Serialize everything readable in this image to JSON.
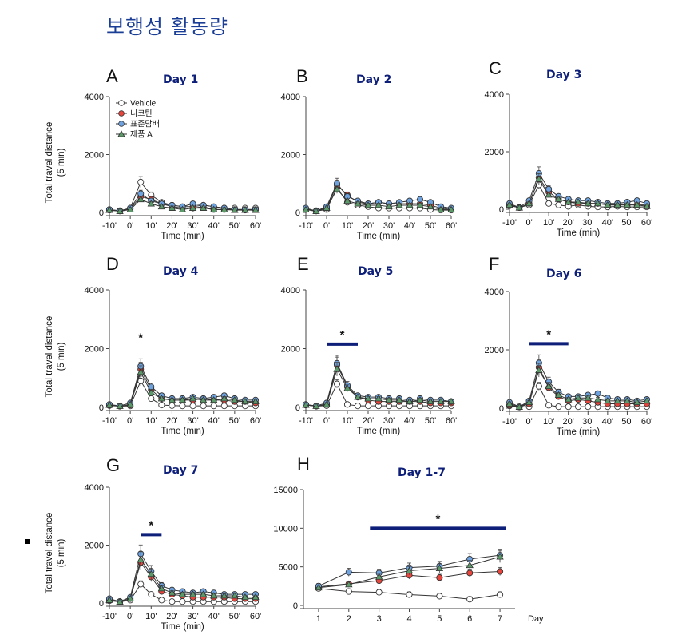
{
  "page": {
    "title": "보행성 활동량"
  },
  "colors": {
    "vehicle": "#ffffff",
    "nicotine": "#e8463c",
    "standard": "#6ea3e0",
    "productA": "#5c9a6a",
    "sigbar": "#0e1f7a"
  },
  "chart_data": [
    {
      "type": "line",
      "panel": "A",
      "title": "Day 1",
      "xlabel": "Time (min)",
      "ylabel": "Total travel distance (5 min)",
      "x": [
        -10,
        -5,
        0,
        5,
        10,
        15,
        20,
        25,
        30,
        35,
        40,
        45,
        50,
        55,
        60
      ],
      "xticks": [
        -10,
        0,
        10,
        20,
        30,
        40,
        50,
        60
      ],
      "xtick_labels": [
        "-10'",
        "0'",
        "10'",
        "20'",
        "30'",
        "40'",
        "50'",
        "60'"
      ],
      "xlim": [
        -10,
        60
      ],
      "ylim": [
        0,
        4000
      ],
      "yticks": [
        0,
        2000,
        4000
      ],
      "yticks_labels": [
        "0",
        "2000",
        "4000"
      ],
      "legend": [
        "Vehicle",
        "니코틴",
        "표준담배",
        "제품 A"
      ],
      "series": [
        {
          "name": "Vehicle",
          "values": [
            100,
            60,
            150,
            1050,
            600,
            350,
            250,
            200,
            200,
            250,
            200,
            150,
            150,
            150,
            150
          ]
        },
        {
          "name": "니코틴",
          "values": [
            80,
            50,
            120,
            550,
            450,
            300,
            200,
            150,
            150,
            200,
            100,
            100,
            100,
            80,
            100
          ]
        },
        {
          "name": "표준담배",
          "values": [
            100,
            50,
            150,
            650,
            400,
            300,
            250,
            200,
            300,
            250,
            200,
            150,
            100,
            100,
            100
          ]
        },
        {
          "name": "제품 A",
          "values": [
            80,
            40,
            100,
            450,
            300,
            200,
            150,
            100,
            150,
            150,
            100,
            100,
            80,
            80,
            80
          ]
        }
      ],
      "significance": []
    },
    {
      "type": "line",
      "panel": "B",
      "title": "Day 2",
      "xlabel": "Time (min)",
      "ylabel": "",
      "x": [
        -10,
        -5,
        0,
        5,
        10,
        15,
        20,
        25,
        30,
        35,
        40,
        45,
        50,
        55,
        60
      ],
      "xticks": [
        -10,
        0,
        10,
        20,
        30,
        40,
        50,
        60
      ],
      "xtick_labels": [
        "-10'",
        "0'",
        "10'",
        "20'",
        "30'",
        "40'",
        "50'",
        "60'"
      ],
      "xlim": [
        -10,
        60
      ],
      "ylim": [
        0,
        4000
      ],
      "yticks": [
        0,
        2000,
        4000
      ],
      "yticks_labels": [
        "0",
        "2000",
        "4000"
      ],
      "series": [
        {
          "name": "Vehicle",
          "values": [
            120,
            50,
            100,
            850,
            350,
            250,
            200,
            150,
            150,
            150,
            150,
            150,
            100,
            80,
            80
          ]
        },
        {
          "name": "니코틴",
          "values": [
            100,
            60,
            150,
            950,
            600,
            350,
            300,
            350,
            300,
            300,
            300,
            300,
            250,
            150,
            100
          ]
        },
        {
          "name": "표준담배",
          "values": [
            150,
            50,
            200,
            1000,
            550,
            400,
            300,
            350,
            300,
            350,
            400,
            450,
            350,
            200,
            150
          ]
        },
        {
          "name": "제품 A",
          "values": [
            100,
            40,
            150,
            800,
            400,
            300,
            250,
            250,
            200,
            250,
            250,
            250,
            200,
            100,
            100
          ]
        }
      ],
      "significance": []
    },
    {
      "type": "line",
      "panel": "C",
      "title": "Day 3",
      "xlabel": "Time (min)",
      "ylabel": "",
      "x": [
        -10,
        -5,
        0,
        5,
        10,
        15,
        20,
        25,
        30,
        35,
        40,
        45,
        50,
        55,
        60
      ],
      "xticks": [
        -10,
        0,
        10,
        20,
        30,
        40,
        50,
        60
      ],
      "xtick_labels": [
        "-10'",
        "0'",
        "10'",
        "20'",
        "30'",
        "40'",
        "50'",
        "60'"
      ],
      "xlim": [
        -10,
        60
      ],
      "ylim": [
        0,
        4000
      ],
      "yticks": [
        0,
        2000,
        4000
      ],
      "yticks_labels": [
        "0",
        "2000",
        "4000"
      ],
      "series": [
        {
          "name": "Vehicle",
          "values": [
            150,
            60,
            150,
            850,
            200,
            150,
            100,
            150,
            100,
            80,
            80,
            100,
            80,
            80,
            80
          ]
        },
        {
          "name": "니코틴",
          "values": [
            120,
            60,
            200,
            1100,
            600,
            350,
            250,
            200,
            200,
            200,
            150,
            150,
            150,
            150,
            150
          ]
        },
        {
          "name": "표준담배",
          "values": [
            200,
            60,
            300,
            1250,
            700,
            450,
            350,
            300,
            300,
            250,
            200,
            200,
            250,
            300,
            200
          ]
        },
        {
          "name": "제품 A",
          "values": [
            150,
            50,
            200,
            1050,
            500,
            350,
            250,
            250,
            200,
            200,
            150,
            150,
            150,
            150,
            100
          ]
        }
      ],
      "significance": []
    },
    {
      "type": "line",
      "panel": "D",
      "title": "Day 4",
      "xlabel": "Time (min)",
      "ylabel": "Total travel distance (5 min)",
      "x": [
        -10,
        -5,
        0,
        5,
        10,
        15,
        20,
        25,
        30,
        35,
        40,
        45,
        50,
        55,
        60
      ],
      "xticks": [
        -10,
        0,
        10,
        20,
        30,
        40,
        50,
        60
      ],
      "xtick_labels": [
        "-10'",
        "0'",
        "10'",
        "20'",
        "30'",
        "40'",
        "50'",
        "60'"
      ],
      "xlim": [
        -10,
        60
      ],
      "ylim": [
        0,
        4000
      ],
      "yticks": [
        0,
        2000,
        4000
      ],
      "yticks_labels": [
        "0",
        "2000",
        "4000"
      ],
      "series": [
        {
          "name": "Vehicle",
          "values": [
            60,
            40,
            50,
            900,
            300,
            80,
            60,
            50,
            50,
            50,
            50,
            50,
            50,
            50,
            50
          ]
        },
        {
          "name": "니코틴",
          "values": [
            80,
            40,
            80,
            1300,
            600,
            300,
            250,
            250,
            250,
            300,
            250,
            250,
            200,
            200,
            150
          ]
        },
        {
          "name": "표준담배",
          "values": [
            100,
            50,
            150,
            1400,
            700,
            400,
            300,
            300,
            350,
            300,
            350,
            400,
            300,
            250,
            250
          ]
        },
        {
          "name": "제품 A",
          "values": [
            80,
            40,
            100,
            1200,
            500,
            300,
            250,
            250,
            300,
            250,
            250,
            300,
            250,
            200,
            200
          ]
        }
      ],
      "significance": [
        {
          "x_from": 5,
          "x_to": 5,
          "label": "*",
          "bar": false
        }
      ]
    },
    {
      "type": "line",
      "panel": "E",
      "title": "Day 5",
      "xlabel": "Time (min)",
      "ylabel": "",
      "x": [
        -10,
        -5,
        0,
        5,
        10,
        15,
        20,
        25,
        30,
        35,
        40,
        45,
        50,
        55,
        60
      ],
      "xticks": [
        -10,
        0,
        10,
        20,
        30,
        40,
        50,
        60
      ],
      "xtick_labels": [
        "-10'",
        "0'",
        "10'",
        "20'",
        "30'",
        "40'",
        "50'",
        "60'"
      ],
      "xlim": [
        -10,
        60
      ],
      "ylim": [
        0,
        4000
      ],
      "yticks": [
        0,
        2000,
        4000
      ],
      "yticks_labels": [
        "0",
        "2000",
        "4000"
      ],
      "series": [
        {
          "name": "Vehicle",
          "values": [
            80,
            40,
            60,
            800,
            100,
            50,
            50,
            50,
            50,
            50,
            50,
            50,
            50,
            50,
            50
          ]
        },
        {
          "name": "니코틴",
          "values": [
            80,
            40,
            100,
            1450,
            700,
            350,
            250,
            200,
            200,
            200,
            200,
            200,
            150,
            150,
            150
          ]
        },
        {
          "name": "표준담배",
          "values": [
            100,
            50,
            150,
            1500,
            750,
            400,
            350,
            350,
            300,
            300,
            250,
            300,
            250,
            250,
            200
          ]
        },
        {
          "name": "제품 A",
          "values": [
            80,
            40,
            100,
            1300,
            650,
            350,
            300,
            300,
            250,
            250,
            200,
            250,
            200,
            200,
            200
          ]
        }
      ],
      "significance": [
        {
          "x_from": 0,
          "x_to": 15,
          "label": "*",
          "bar": true
        }
      ]
    },
    {
      "type": "line",
      "panel": "F",
      "title": "Day 6",
      "xlabel": "Time (min)",
      "ylabel": "",
      "x": [
        -10,
        -5,
        0,
        5,
        10,
        15,
        20,
        25,
        30,
        35,
        40,
        45,
        50,
        55,
        60
      ],
      "xticks": [
        -10,
        0,
        10,
        20,
        30,
        40,
        50,
        60
      ],
      "xtick_labels": [
        "-10'",
        "0'",
        "10'",
        "20'",
        "30'",
        "40'",
        "50'",
        "60'"
      ],
      "xlim": [
        -10,
        60
      ],
      "ylim": [
        0,
        4000
      ],
      "yticks": [
        0,
        2000,
        4000
      ],
      "yticks_labels": [
        "0",
        "2000",
        "4000"
      ],
      "series": [
        {
          "name": "Vehicle",
          "values": [
            80,
            40,
            50,
            750,
            100,
            50,
            50,
            50,
            50,
            50,
            50,
            50,
            50,
            50,
            50
          ]
        },
        {
          "name": "니코틴",
          "values": [
            100,
            40,
            150,
            1400,
            700,
            400,
            250,
            300,
            250,
            200,
            150,
            150,
            150,
            150,
            150
          ]
        },
        {
          "name": "표준담배",
          "values": [
            200,
            50,
            250,
            1550,
            900,
            550,
            400,
            400,
            450,
            500,
            350,
            300,
            300,
            250,
            300
          ]
        },
        {
          "name": "제품 A",
          "values": [
            150,
            40,
            200,
            1300,
            750,
            450,
            300,
            350,
            350,
            300,
            250,
            250,
            250,
            200,
            250
          ]
        }
      ],
      "significance": [
        {
          "x_from": 0,
          "x_to": 20,
          "label": "*",
          "bar": true
        }
      ]
    },
    {
      "type": "line",
      "panel": "G",
      "title": "Day 7",
      "xlabel": "Time (min)",
      "ylabel": "Total travel distance (5 min)",
      "x": [
        -10,
        -5,
        0,
        5,
        10,
        15,
        20,
        25,
        30,
        35,
        40,
        45,
        50,
        55,
        60
      ],
      "xticks": [
        -10,
        0,
        10,
        20,
        30,
        40,
        50,
        60
      ],
      "xtick_labels": [
        "-10'",
        "0'",
        "10'",
        "20'",
        "30'",
        "40'",
        "50'",
        "60'"
      ],
      "xlim": [
        -10,
        60
      ],
      "ylim": [
        0,
        4000
      ],
      "yticks": [
        0,
        2000,
        4000
      ],
      "yticks_labels": [
        "0",
        "2000",
        "4000"
      ],
      "series": [
        {
          "name": "Vehicle",
          "values": [
            80,
            40,
            100,
            650,
            300,
            100,
            50,
            50,
            50,
            50,
            50,
            50,
            50,
            50,
            50
          ]
        },
        {
          "name": "니코틴",
          "values": [
            100,
            50,
            150,
            1400,
            900,
            400,
            300,
            250,
            200,
            200,
            200,
            200,
            150,
            150,
            150
          ]
        },
        {
          "name": "표준담배",
          "values": [
            150,
            50,
            200,
            1700,
            1100,
            600,
            450,
            400,
            350,
            400,
            350,
            300,
            300,
            300,
            300
          ]
        },
        {
          "name": "제품 A",
          "values": [
            100,
            40,
            150,
            1500,
            1000,
            500,
            350,
            300,
            300,
            300,
            250,
            250,
            250,
            200,
            200
          ]
        }
      ],
      "significance": [
        {
          "x_from": 5,
          "x_to": 15,
          "label": "*",
          "bar": true
        }
      ]
    },
    {
      "type": "line",
      "panel": "H",
      "title": "Day 1-7",
      "xlabel": "Day",
      "ylabel": "",
      "x": [
        1,
        2,
        3,
        4,
        5,
        6,
        7
      ],
      "xticks": [
        1,
        2,
        3,
        4,
        5,
        6,
        7
      ],
      "xtick_labels": [
        "1",
        "2",
        "3",
        "4",
        "5",
        "6",
        "7"
      ],
      "xlim": [
        0.5,
        7.5
      ],
      "ylim": [
        0,
        15000
      ],
      "yticks": [
        0,
        5000,
        10000,
        15000
      ],
      "yticks_labels": [
        "0",
        "5000",
        "10000",
        "15000"
      ],
      "series": [
        {
          "name": "Vehicle",
          "values": [
            2200,
            1800,
            1700,
            1400,
            1200,
            800,
            1400
          ]
        },
        {
          "name": "니코틴",
          "values": [
            2400,
            2800,
            3200,
            3900,
            3600,
            4200,
            4400
          ]
        },
        {
          "name": "표준담배",
          "values": [
            2500,
            4300,
            4200,
            4900,
            5100,
            6000,
            6500
          ]
        },
        {
          "name": "제품 A",
          "values": [
            2300,
            2700,
            3700,
            4500,
            4800,
            5200,
            6300
          ]
        }
      ],
      "significance": [
        {
          "x_from": 2.7,
          "x_to": 7.2,
          "label": "*",
          "bar": true
        }
      ]
    }
  ]
}
